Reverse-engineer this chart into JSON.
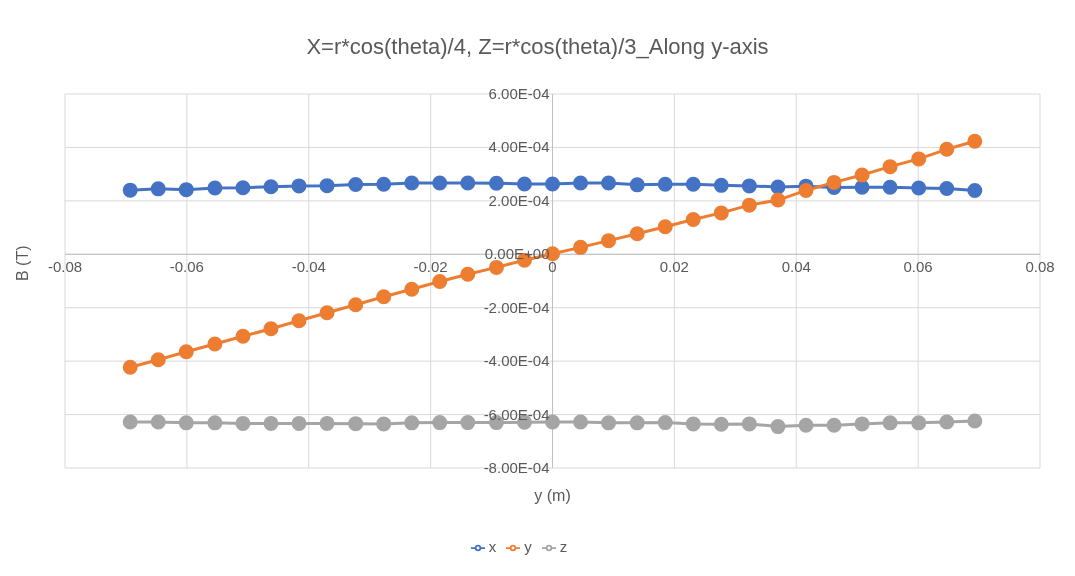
{
  "chart_data": {
    "type": "line",
    "title": "X=r*cos(theta)/4, Z=r*cos(theta)/3_Along y-axis",
    "xlabel": "y (m)",
    "ylabel": "B (T)",
    "x": [
      -0.0693,
      -0.0647,
      -0.0601,
      -0.0554,
      -0.0508,
      -0.0462,
      -0.0416,
      -0.037,
      -0.0323,
      -0.0277,
      -0.0231,
      -0.0185,
      -0.0139,
      -0.0092,
      -0.0046,
      0,
      0.0046,
      0.0092,
      0.0139,
      0.0185,
      0.0231,
      0.0277,
      0.0323,
      0.037,
      0.0416,
      0.0462,
      0.0508,
      0.0554,
      0.0601,
      0.0647,
      0.0693
    ],
    "series": [
      {
        "name": "x",
        "color": "#4472c4",
        "values": [
          0.00024,
          0.000245,
          0.000242,
          0.000248,
          0.000249,
          0.000253,
          0.000256,
          0.000257,
          0.000261,
          0.000262,
          0.000267,
          0.000267,
          0.000267,
          0.000266,
          0.000263,
          0.000263,
          0.000267,
          0.000267,
          0.00026,
          0.000262,
          0.000262,
          0.000258,
          0.000256,
          0.000252,
          0.000255,
          0.00025,
          0.000251,
          0.000251,
          0.000248,
          0.000246,
          0.000239
        ]
      },
      {
        "name": "y",
        "color": "#ed7d31",
        "values": [
          -0.000423,
          -0.000395,
          -0.000365,
          -0.000336,
          -0.000307,
          -0.000279,
          -0.000249,
          -0.000219,
          -0.000189,
          -0.000159,
          -0.000131,
          -0.000102,
          -7.5e-05,
          -4.9e-05,
          -2.2e-05,
          2e-06,
          2.6e-05,
          5.1e-05,
          7.7e-05,
          0.000103,
          0.00013,
          0.000155,
          0.000184,
          0.000203,
          0.000239,
          0.000269,
          0.000297,
          0.000328,
          0.000357,
          0.000393,
          0.000423
        ]
      },
      {
        "name": "z",
        "color": "#a5a5a5",
        "values": [
          -0.000628,
          -0.000628,
          -0.000631,
          -0.000631,
          -0.000633,
          -0.000633,
          -0.000633,
          -0.000633,
          -0.000634,
          -0.000635,
          -0.000631,
          -0.00063,
          -0.00063,
          -0.00063,
          -0.000629,
          -0.000628,
          -0.000628,
          -0.000631,
          -0.000631,
          -0.00063,
          -0.000635,
          -0.000636,
          -0.000635,
          -0.000645,
          -0.00064,
          -0.00064,
          -0.000635,
          -0.000631,
          -0.000631,
          -0.000628,
          -0.000624
        ]
      }
    ],
    "xlim": [
      -0.08,
      0.08
    ],
    "xticks": [
      -0.08,
      -0.06,
      -0.04,
      -0.02,
      0,
      0.02,
      0.04,
      0.06,
      0.08
    ],
    "ylim": [
      -0.0008,
      0.0006
    ],
    "yticks": [
      {
        "value": -0.0008,
        "label": "-8.00E-04"
      },
      {
        "value": -0.0006,
        "label": "-6.00E-04"
      },
      {
        "value": -0.0004,
        "label": "-4.00E-04"
      },
      {
        "value": -0.0002,
        "label": "-2.00E-04"
      },
      {
        "value": 0,
        "label": "0.00E+00"
      },
      {
        "value": 0.0002,
        "label": "2.00E-04"
      },
      {
        "value": 0.0004,
        "label": "4.00E-04"
      },
      {
        "value": 0.0006,
        "label": "6.00E-04"
      }
    ],
    "grid": true,
    "legend": "bottom",
    "marker": "circle",
    "line_style": "solid"
  }
}
